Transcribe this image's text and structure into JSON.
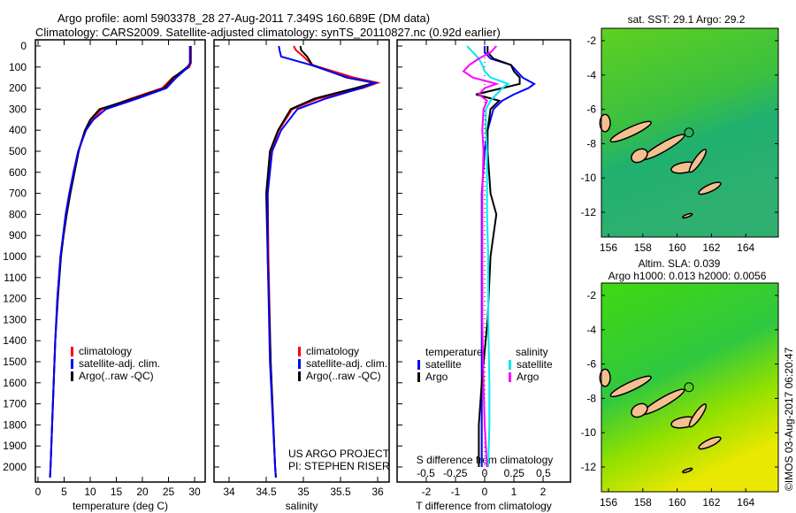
{
  "title_line1": "Argo profile: aoml 5903378_28 27-Aug-2011 7.349S 160.689E (DM data)",
  "title_line2": "Climatology: CARS2009. Satellite-adjusted climatology: synTS_20110827.nc (0.92d earlier)",
  "colors": {
    "clim": "#ff0000",
    "sat": "#0000ff",
    "argo": "#000000",
    "s_sat": "#00e8f0",
    "s_argo": "#ff00ff",
    "land": "#f5c090"
  },
  "chart_data": [
    {
      "type": "line",
      "id": "temperature",
      "xlabel": "temperature (deg C)",
      "ylabel": "",
      "xlim": [
        -0.5,
        32
      ],
      "ylim": [
        2080,
        -30
      ],
      "xticks": [
        "0",
        "5",
        "10",
        "15",
        "20",
        "25",
        "30"
      ],
      "xtick_values": [
        0,
        5,
        10,
        15,
        20,
        25,
        30
      ],
      "yticks": [
        "0",
        "100",
        "200",
        "300",
        "400",
        "500",
        "600",
        "700",
        "800",
        "900",
        "1000",
        "1100",
        "1200",
        "1300",
        "1400",
        "1500",
        "1600",
        "1700",
        "1800",
        "1900",
        "2000"
      ],
      "depth": [
        0,
        80,
        100,
        150,
        200,
        250,
        300,
        350,
        400,
        500,
        600,
        700,
        800,
        900,
        1000,
        1200,
        1400,
        1600,
        1800,
        2000,
        2050
      ],
      "legend": [
        "climatology",
        "satellite-adj. clim.",
        "Argo(..raw -QC)"
      ],
      "series": [
        {
          "name": "climatology",
          "values": [
            29.3,
            29.3,
            29.0,
            25.8,
            23.8,
            17.8,
            12.3,
            10.2,
            9.0,
            7.7,
            6.8,
            6.0,
            5.3,
            4.8,
            4.3,
            3.7,
            3.3,
            3.0,
            2.7,
            2.4,
            2.3
          ]
        },
        {
          "name": "satellite-adj. clim.",
          "values": [
            29.1,
            29.1,
            28.8,
            26.5,
            24.6,
            19.0,
            13.0,
            10.6,
            9.2,
            7.7,
            6.8,
            6.0,
            5.3,
            4.8,
            4.3,
            3.7,
            3.3,
            3.0,
            2.7,
            2.4,
            2.3
          ]
        },
        {
          "name": "Argo(..raw -QC)",
          "values": [
            29.2,
            29.2,
            28.6,
            26.0,
            24.2,
            18.3,
            11.8,
            10.0,
            9.0,
            7.8,
            7.0,
            6.2,
            5.5,
            4.9,
            4.4,
            3.8,
            3.3,
            3.0,
            2.7,
            2.4,
            2.3
          ]
        }
      ]
    },
    {
      "type": "line",
      "id": "salinity",
      "xlabel": "salinity",
      "xlim": [
        33.8,
        36.15
      ],
      "ylim": [
        2080,
        -30
      ],
      "xticks": [
        "34",
        "34.5",
        "35",
        "35.5",
        "36"
      ],
      "xtick_values": [
        34,
        34.5,
        35,
        35.5,
        36
      ],
      "depth": [
        0,
        20,
        50,
        90,
        150,
        175,
        200,
        250,
        300,
        400,
        500,
        700,
        1000,
        1500,
        2000,
        2050
      ],
      "legend": [
        "climatology",
        "satellite-adj. clim.",
        "Argo(..raw -QC)"
      ],
      "annotation": [
        "US ARGO PROJECT",
        "PI: STEPHEN RISER"
      ],
      "series": [
        {
          "name": "climatology",
          "values": [
            34.87,
            34.9,
            35.0,
            35.12,
            35.68,
            36.0,
            35.8,
            35.2,
            34.85,
            34.67,
            34.56,
            34.52,
            34.53,
            34.56,
            34.62,
            34.63
          ]
        },
        {
          "name": "satellite-adj. clim.",
          "values": [
            34.67,
            34.68,
            34.7,
            35.1,
            35.6,
            35.97,
            35.78,
            35.3,
            34.92,
            34.7,
            34.58,
            34.52,
            34.52,
            34.55,
            34.62,
            34.63
          ]
        },
        {
          "name": "Argo(..raw -QC)",
          "values": [
            34.96,
            34.97,
            35.05,
            35.12,
            35.58,
            35.95,
            35.7,
            35.15,
            34.83,
            34.66,
            34.55,
            34.5,
            34.52,
            34.56,
            34.62,
            34.63
          ]
        }
      ]
    },
    {
      "type": "line",
      "id": "differences",
      "xlabel": "T difference from climatology",
      "x2label": "S difference from climatology",
      "xlim": [
        -3,
        3
      ],
      "x2lim": [
        -0.75,
        0.75
      ],
      "ylim": [
        2080,
        -30
      ],
      "xticks": [
        "-2",
        "-1",
        "0",
        "1",
        "2"
      ],
      "xtick_values": [
        -2,
        -1,
        0,
        1,
        2
      ],
      "x2ticks": [
        "-0.5",
        "-0.25",
        "0",
        "0.25",
        "0.5"
      ],
      "x2tick_values": [
        -0.5,
        -0.25,
        0,
        0.25,
        0.5
      ],
      "legend_temperature": {
        "heading": "temperature",
        "items": [
          "satellite",
          "Argo"
        ]
      },
      "legend_salinity": {
        "heading": "salinity",
        "items": [
          "satellite",
          "Argo"
        ]
      },
      "depth": [
        0,
        30,
        60,
        90,
        120,
        150,
        180,
        200,
        230,
        260,
        300,
        400,
        500,
        700,
        800,
        1000,
        1300,
        1600,
        1800,
        2000
      ],
      "series": [
        {
          "name": "T satellite",
          "axis": "T",
          "values": [
            0,
            0,
            0.2,
            0.9,
            1.1,
            1.3,
            1.7,
            1.5,
            1.0,
            0.6,
            0.3,
            0.1,
            0,
            -0.1,
            -0.1,
            -0.1,
            -0.1,
            -0.1,
            -0.1,
            -0.1
          ]
        },
        {
          "name": "T Argo",
          "axis": "T",
          "values": [
            0.1,
            0.1,
            0.3,
            0.9,
            1.0,
            1.2,
            1.2,
            0.6,
            -0.3,
            0.5,
            0.2,
            0.1,
            0.1,
            0.2,
            0.4,
            0.2,
            0.1,
            -0.1,
            -0.2,
            -0.2
          ]
        },
        {
          "name": "S satellite",
          "axis": "S",
          "values": [
            -0.15,
            -0.1,
            -0.05,
            -0.02,
            0,
            0.05,
            0.2,
            0.15,
            0.1,
            0.05,
            0.01,
            0.01,
            0.02,
            0.02,
            0.02,
            0.03,
            0.03,
            0.04,
            0.04,
            0.03
          ]
        },
        {
          "name": "S Argo",
          "axis": "S",
          "values": [
            0.1,
            0.05,
            -0.05,
            -0.13,
            -0.18,
            -0.1,
            0.1,
            0,
            -0.05,
            0.02,
            -0.01,
            -0.02,
            -0.01,
            -0.02,
            -0.02,
            -0.02,
            -0.02,
            -0.01,
            0,
            0.02
          ]
        }
      ]
    },
    {
      "type": "heatmap",
      "id": "sst-map",
      "title": "sat. SST: 29.1  Argo: 29.2",
      "xlim": [
        155.6,
        165.9
      ],
      "ylim": [
        -13.4,
        -1.3
      ],
      "xticks": [
        "156",
        "158",
        "160",
        "162",
        "164"
      ],
      "xtick_values": [
        156,
        158,
        160,
        162,
        164
      ],
      "yticks": [
        "-2",
        "-4",
        "-6",
        "-8",
        "-10",
        "-12"
      ],
      "ytick_values": [
        -2,
        -4,
        -6,
        -8,
        -10,
        -12
      ],
      "marker": [
        160.689,
        -7.349
      ]
    },
    {
      "type": "heatmap",
      "id": "sla-map",
      "title": "Altim. SLA: 0.039",
      "subtitle": "Argo h1000: 0.013 h2000: 0.0056",
      "xlim": [
        155.6,
        165.9
      ],
      "ylim": [
        -13.4,
        -1.3
      ],
      "xticks": [
        "156",
        "158",
        "160",
        "162",
        "164"
      ],
      "xtick_values": [
        156,
        158,
        160,
        162,
        164
      ],
      "yticks": [
        "-2",
        "-4",
        "-6",
        "-8",
        "-10",
        "-12"
      ],
      "ytick_values": [
        -2,
        -4,
        -6,
        -8,
        -10,
        -12
      ],
      "marker": [
        160.689,
        -7.349
      ]
    }
  ],
  "credit": "©IMOS 03-Aug-2017 06:20:47"
}
